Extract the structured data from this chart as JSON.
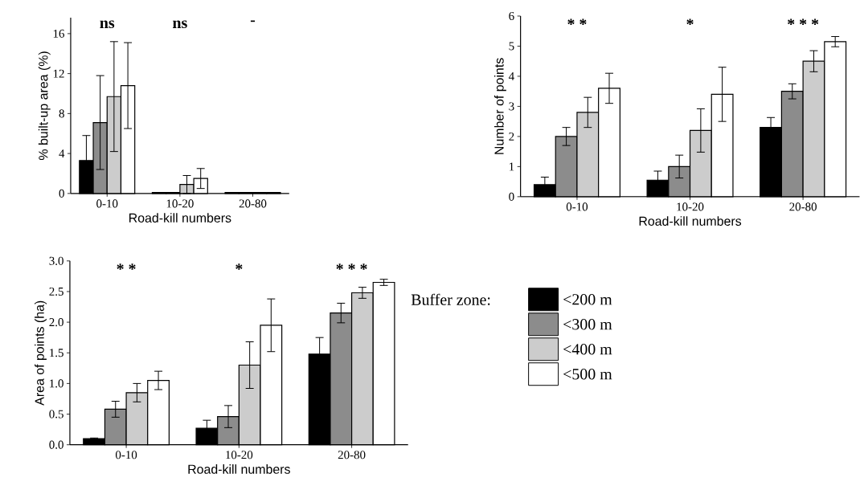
{
  "chart_data": [
    {
      "type": "bar",
      "xlabel": "Road-kill numbers",
      "ylabel": "% built-up area (%)",
      "categories": [
        "0-10",
        "10-20",
        "20-80"
      ],
      "ylim": [
        0,
        17.6
      ],
      "yticks": [
        0,
        4,
        8,
        12,
        16
      ],
      "grid": false,
      "legend": false,
      "series": [
        {
          "color": "#000000",
          "values": [
            3.3,
            0.1,
            0.1
          ],
          "errors": [
            2.5,
            null,
            null
          ]
        },
        {
          "color": "#8c8c8c",
          "values": [
            7.1,
            0.1,
            0.1
          ],
          "errors": [
            4.7,
            null,
            null
          ]
        },
        {
          "color": "#cccccc",
          "values": [
            9.7,
            0.9,
            0.1
          ],
          "errors": [
            5.5,
            0.9,
            null
          ]
        },
        {
          "color": "#ffffff",
          "values": [
            10.8,
            1.5,
            0.1
          ],
          "errors": [
            4.3,
            1.0,
            null
          ]
        }
      ],
      "annotations": [
        "ns",
        "ns",
        "-"
      ]
    },
    {
      "type": "bar",
      "xlabel": "Road-kill numbers",
      "ylabel": "Number of points",
      "categories": [
        "0-10",
        "10-20",
        "20-80"
      ],
      "ylim": [
        0,
        6
      ],
      "yticks": [
        0,
        1,
        2,
        3,
        4,
        5,
        6
      ],
      "grid": false,
      "legend": false,
      "series": [
        {
          "color": "#000000",
          "values": [
            0.4,
            0.55,
            2.3
          ],
          "errors": [
            0.25,
            0.3,
            0.33
          ]
        },
        {
          "color": "#8c8c8c",
          "values": [
            2.0,
            1.0,
            3.5
          ],
          "errors": [
            0.3,
            0.38,
            0.25
          ]
        },
        {
          "color": "#cccccc",
          "values": [
            2.8,
            2.2,
            4.5
          ],
          "errors": [
            0.5,
            0.72,
            0.35
          ]
        },
        {
          "color": "#ffffff",
          "values": [
            3.6,
            3.4,
            5.15
          ],
          "errors": [
            0.5,
            0.9,
            0.17
          ]
        }
      ],
      "annotations": [
        "* *",
        "*",
        "* * *"
      ]
    },
    {
      "type": "bar",
      "xlabel": "Road-kill numbers",
      "ylabel": "Area of points (ha)",
      "categories": [
        "0-10",
        "10-20",
        "20-80"
      ],
      "ylim": [
        0,
        3
      ],
      "yticks": [
        {
          "value": 0,
          "label": "0.0"
        },
        {
          "value": 0.5,
          "label": "0.5"
        },
        {
          "value": 1,
          "label": "1.0"
        },
        {
          "value": 1.5,
          "label": "1.5"
        },
        {
          "value": 2,
          "label": "2.0"
        },
        {
          "value": 2.5,
          "label": "2.5"
        },
        {
          "value": 3,
          "label": "3.0"
        }
      ],
      "grid": false,
      "legend": "right",
      "legend_title": "Buffer zone:",
      "series": [
        {
          "name": "<200 m",
          "color": "#000000",
          "values": [
            0.1,
            0.27,
            1.48
          ],
          "errors": [
            0.01,
            0.13,
            0.27
          ]
        },
        {
          "name": "<300 m",
          "color": "#8c8c8c",
          "values": [
            0.58,
            0.46,
            2.15
          ],
          "errors": [
            0.13,
            0.18,
            0.16
          ]
        },
        {
          "name": "<400 m",
          "color": "#cccccc",
          "values": [
            0.85,
            1.3,
            2.48
          ],
          "errors": [
            0.15,
            0.38,
            0.09
          ]
        },
        {
          "name": "<500 m",
          "color": "#ffffff",
          "values": [
            1.05,
            1.95,
            2.65
          ],
          "errors": [
            0.15,
            0.43,
            0.05
          ]
        }
      ],
      "annotations": [
        "* *",
        "*",
        "* * *"
      ]
    }
  ]
}
